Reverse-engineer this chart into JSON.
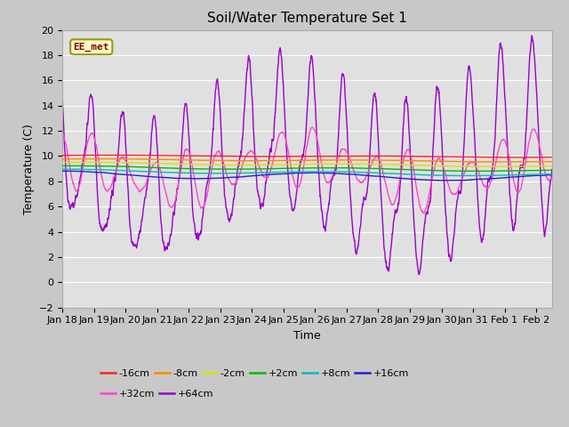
{
  "title": "Soil/Water Temperature Set 1",
  "xlabel": "Time",
  "ylabel": "Temperature (C)",
  "ylim": [
    -2,
    20
  ],
  "yticks": [
    -2,
    0,
    2,
    4,
    6,
    8,
    10,
    12,
    14,
    16,
    18,
    20
  ],
  "n_days": 15.5,
  "x_tick_labels": [
    "Jan 18",
    "Jan 19",
    "Jan 20",
    "Jan 21",
    "Jan 22",
    "Jan 23",
    "Jan 24",
    "Jan 25",
    "Jan 26",
    "Jan 27",
    "Jan 28",
    "Jan 29",
    "Jan 30",
    "Jan 31",
    "Feb 1",
    "Feb 2"
  ],
  "fig_bg": "#c8c8c8",
  "plot_bg": "#e0e0e0",
  "grid_color": "#ffffff",
  "title_fontsize": 11,
  "tick_fontsize": 8,
  "xlabel_fontsize": 9,
  "ylabel_fontsize": 9,
  "series": [
    {
      "label": "-16cm",
      "color": "#ff2020",
      "base": 10.05,
      "amp": 0.08,
      "trend": -0.008,
      "phase": 0.0
    },
    {
      "label": "-8cm",
      "color": "#ff8800",
      "base": 9.75,
      "amp": 0.12,
      "trend": -0.012,
      "phase": 0.3
    },
    {
      "label": "-2cm",
      "color": "#dddd00",
      "base": 9.45,
      "amp": 0.18,
      "trend": -0.016,
      "phase": 0.6
    },
    {
      "label": "+2cm",
      "color": "#00bb00",
      "base": 9.15,
      "amp": 0.22,
      "trend": -0.02,
      "phase": 0.9
    },
    {
      "label": "+8cm",
      "color": "#00bbbb",
      "base": 8.85,
      "amp": 0.28,
      "trend": -0.023,
      "phase": 1.2
    },
    {
      "label": "+16cm",
      "color": "#2222cc",
      "base": 8.55,
      "amp": 0.65,
      "trend": -0.018,
      "phase": 1.5
    },
    {
      "label": "+32cm",
      "color": "#ff44cc",
      "base": 9.0,
      "amp": 2.5,
      "trend": -0.008,
      "phase": 2.0
    },
    {
      "label": "+64cm",
      "color": "#9900cc",
      "base": 9.0,
      "amp": 5.5,
      "trend": 0.0,
      "phase": 2.5
    }
  ],
  "annotation_text": "EE_met",
  "annotation_bg": "#ffffcc",
  "annotation_border": "#999900",
  "annotation_text_color": "#880000"
}
